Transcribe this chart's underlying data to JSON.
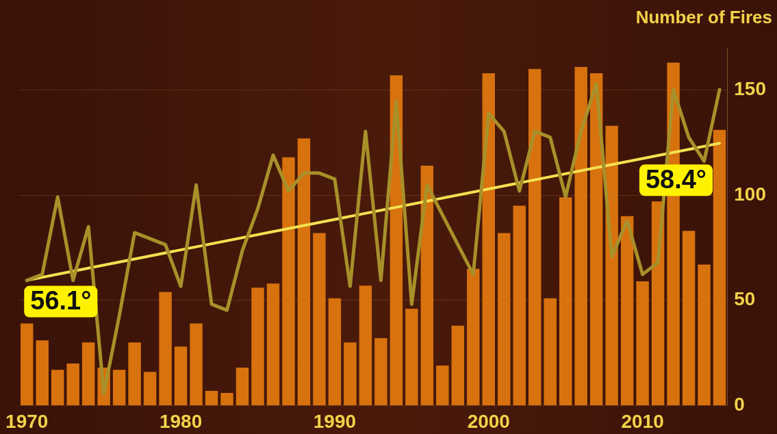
{
  "chart_data": {
    "type": "bar",
    "ylabel": "Number of Fires",
    "categories": [
      "1970",
      null,
      null,
      null,
      null,
      null,
      null,
      null,
      null,
      null,
      "1980",
      null,
      null,
      null,
      null,
      null,
      null,
      null,
      null,
      null,
      "1990",
      null,
      null,
      null,
      null,
      null,
      null,
      null,
      null,
      null,
      "2000",
      null,
      null,
      null,
      null,
      null,
      null,
      null,
      null,
      null,
      "2010",
      null,
      null,
      null,
      null,
      null
    ],
    "series": [
      {
        "color": "#d8720e",
        "values": [
          39,
          31,
          17,
          20,
          30,
          18,
          17,
          30,
          16,
          54,
          28,
          39,
          7,
          6,
          18,
          56,
          58,
          118,
          127,
          82,
          51,
          30,
          57,
          32,
          157,
          46,
          114,
          19,
          38,
          65,
          158,
          82,
          95,
          160,
          51,
          99,
          161,
          158,
          133,
          90,
          59,
          97,
          163,
          83,
          67,
          131
        ]
      },
      {
        "type": "line",
        "axis": "y2",
        "color": "#a8902a",
        "values": [
          56.1,
          56.2,
          57.5,
          56.1,
          57.0,
          54.2,
          55.5,
          56.9,
          56.8,
          56.7,
          56.0,
          57.7,
          55.7,
          55.6,
          56.6,
          57.3,
          58.2,
          57.6,
          57.9,
          57.9,
          57.8,
          56.0,
          58.6,
          56.1,
          59.1,
          55.7,
          57.7,
          57.2,
          56.7,
          56.2,
          58.9,
          58.6,
          57.6,
          58.6,
          58.5,
          57.5,
          58.6,
          59.4,
          56.5,
          57.1,
          56.2,
          56.4,
          59.3,
          58.5,
          58.1,
          59.3
        ]
      },
      {
        "type": "line",
        "axis": "y2",
        "color": "#f5e050",
        "values": [
          56.1,
          null,
          null,
          null,
          null,
          null,
          null,
          null,
          null,
          null,
          null,
          null,
          null,
          null,
          null,
          null,
          null,
          null,
          null,
          null,
          null,
          null,
          null,
          null,
          null,
          null,
          null,
          null,
          null,
          null,
          null,
          null,
          null,
          null,
          null,
          null,
          null,
          null,
          null,
          null,
          null,
          null,
          null,
          null,
          null,
          58.4
        ],
        "value_labels": [
          "56.1°",
          null,
          null,
          null,
          null,
          null,
          null,
          null,
          null,
          null,
          null,
          null,
          null,
          null,
          null,
          null,
          null,
          null,
          null,
          null,
          null,
          null,
          null,
          null,
          null,
          null,
          null,
          null,
          null,
          null,
          null,
          null,
          null,
          null,
          null,
          null,
          null,
          null,
          null,
          null,
          null,
          null,
          null,
          null,
          null,
          "58.4°"
        ]
      }
    ],
    "ylim": [
      0,
      170
    ],
    "yticks": [
      0,
      50,
      100,
      150
    ],
    "grid": "y",
    "legend": false,
    "marker": "none",
    "line_style": "solid",
    "tick_labels": "xy"
  }
}
